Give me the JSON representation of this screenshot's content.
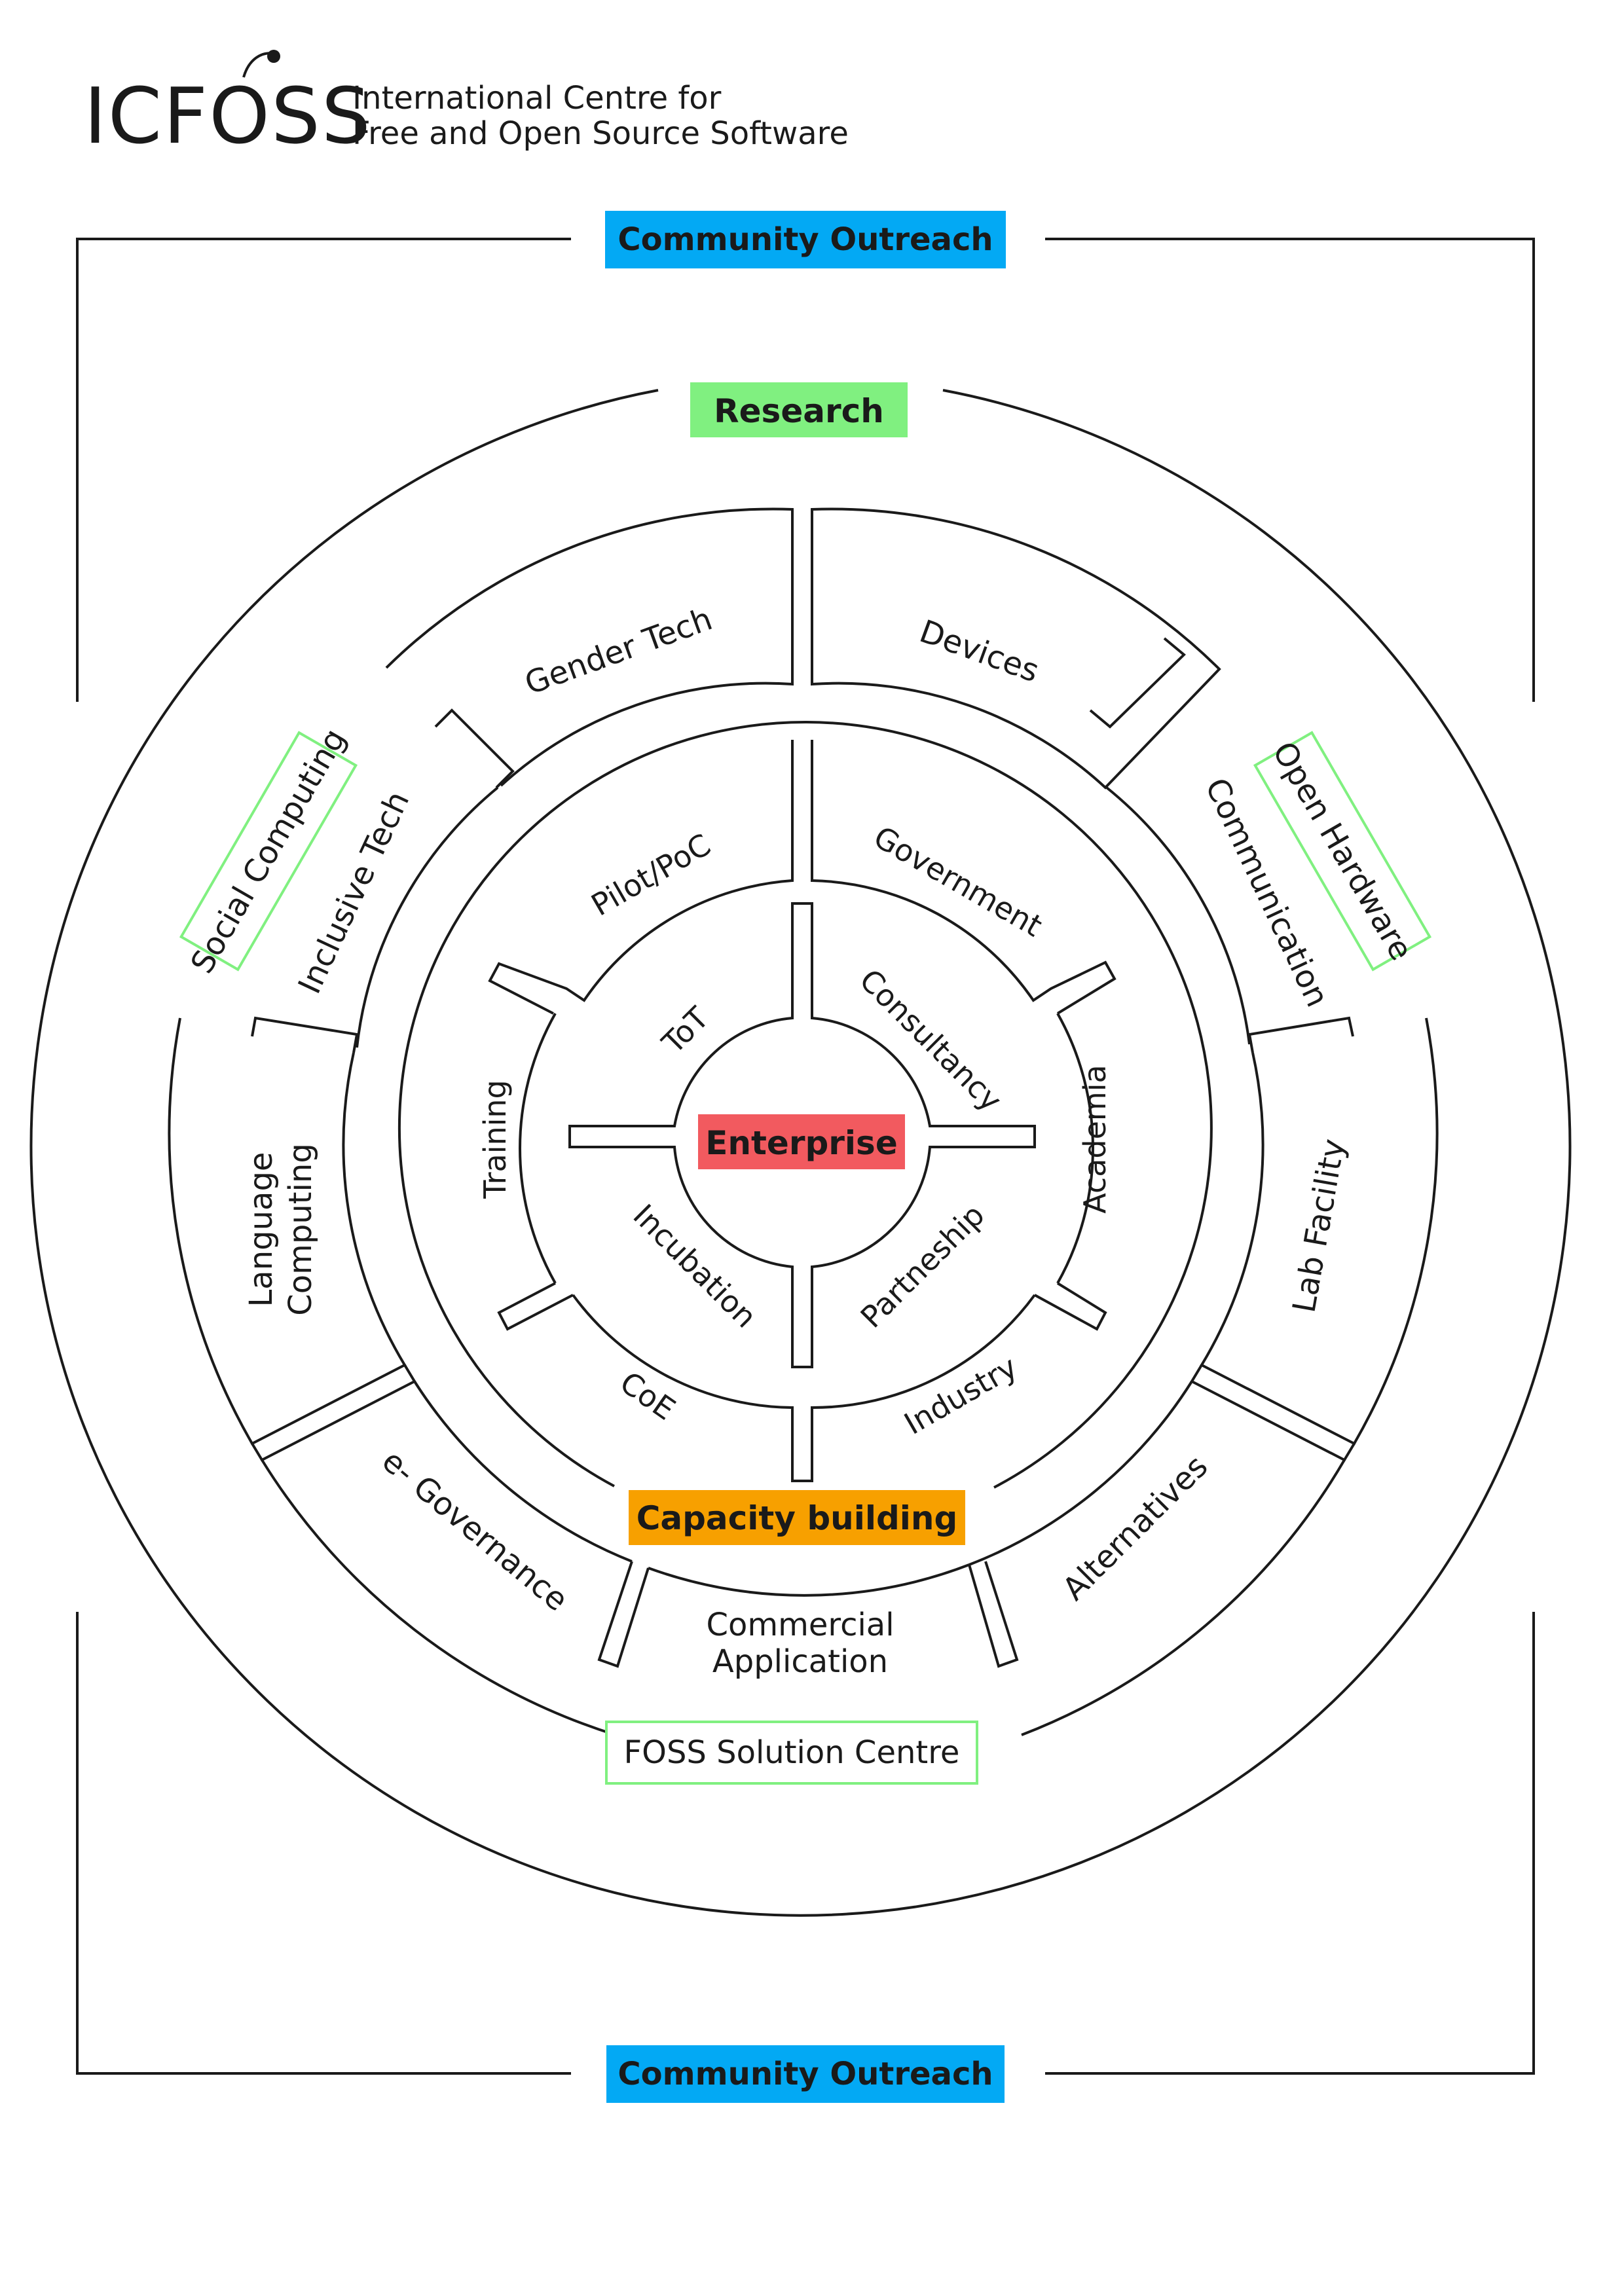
{
  "header": {
    "logo_text": "ICFOSS",
    "title_line1": "International Centre for",
    "title_line2": "Free and Open Source Software"
  },
  "colors": {
    "community": "#03a9f4",
    "research": "#80f080",
    "enterprise": "#f25a5f",
    "capacity": "#f7a000",
    "green_outline": "#80f080",
    "line": "#1a1a1a"
  },
  "outer": {
    "top_label": "Community Outreach",
    "bottom_label": "Community Outreach"
  },
  "labels": {
    "research": "Research",
    "enterprise": "Enterprise",
    "capacity_building": "Capacity building",
    "foss_solution_centre": "FOSS Solution Centre",
    "social_computing": "Social Computing",
    "open_hardware": "Open Hardware"
  },
  "ring3_segments": {
    "gender_tech": "Gender Tech",
    "devices": "Devices",
    "inclusive_tech": "Inclusive Tech",
    "communication": "Communication",
    "language_computing_1": "Language",
    "language_computing_2": "Computing",
    "lab_facility": "Lab Facility",
    "e_governance": "e- Governance",
    "commercial_application_1": "Commercial",
    "commercial_application_2": "Application",
    "alternatives": "Alternatives"
  },
  "ring2_segments": {
    "pilot_poc": "Pilot/PoC",
    "government": "Government",
    "training": "Training",
    "academia": "Academia",
    "coe": "CoE",
    "industry": "Industry"
  },
  "ring1_segments": {
    "tot": "ToT",
    "consultancy": "Consultancy",
    "incubation": "Incubation",
    "partneship": "Partneship"
  }
}
